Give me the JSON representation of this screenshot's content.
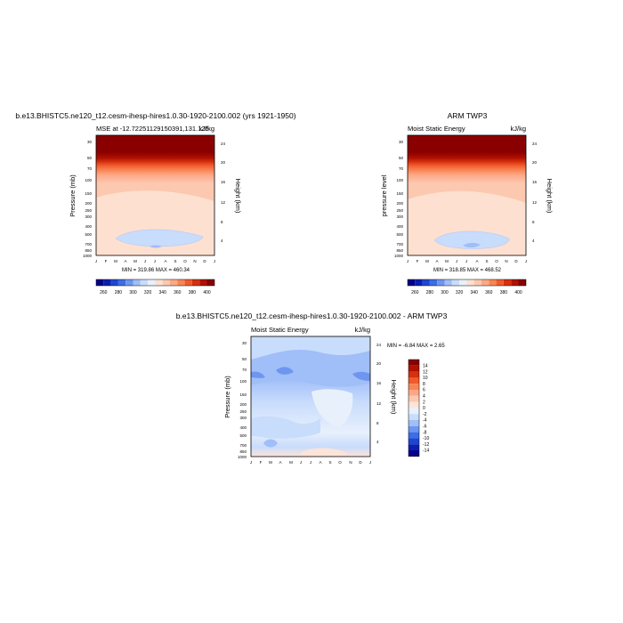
{
  "chart_data": [
    {
      "type": "heatmap",
      "title": "b.e13.BHISTC5.ne120_t12.cesm-ihesp-hires1.0.30-1920-2100.002 (yrs 1921-1950)",
      "subtitle_left": "MSE at -12.72251129150391,131.125",
      "subtitle_right": "kJ/kg",
      "xlabel": "",
      "ylabel": "Pressure (mb)",
      "ylabel_right": "Height (km)",
      "x_ticks": [
        "J",
        "F",
        "M",
        "A",
        "M",
        "J",
        "J",
        "A",
        "S",
        "O",
        "N",
        "D",
        "J"
      ],
      "y_ticks": [
        "30",
        "50",
        "70",
        "100",
        "150",
        "200",
        "250",
        "300",
        "400",
        "500",
        "700",
        "850",
        "1000"
      ],
      "y_ticks_right": [
        "24",
        "20",
        "16",
        "12",
        "8",
        "4"
      ],
      "stats": "MIN = 319.86 MAX = 460.34",
      "colorbar_labels": [
        "260",
        "280",
        "300",
        "320",
        "340",
        "360",
        "380",
        "400"
      ],
      "grid": false
    },
    {
      "type": "heatmap",
      "title": "ARM TWP3",
      "subtitle_left": "Moist Static Energy",
      "subtitle_right": "kJ/kg",
      "xlabel": "",
      "ylabel": "pressure level",
      "ylabel_right": "Height (km)",
      "x_ticks": [
        "J",
        "F",
        "M",
        "A",
        "M",
        "J",
        "J",
        "A",
        "S",
        "O",
        "N",
        "D",
        "J"
      ],
      "y_ticks": [
        "30",
        "50",
        "70",
        "100",
        "150",
        "200",
        "250",
        "300",
        "400",
        "500",
        "700",
        "850",
        "1000"
      ],
      "y_ticks_right": [
        "24",
        "20",
        "16",
        "12",
        "8",
        "4"
      ],
      "stats": "MIN = 318.85 MAX = 468.52",
      "colorbar_labels": [
        "260",
        "280",
        "300",
        "320",
        "340",
        "360",
        "380",
        "400"
      ],
      "grid": false
    },
    {
      "type": "heatmap",
      "title": "b.e13.BHISTC5.ne120_t12.cesm-ihesp-hires1.0.30-1920-2100.002 - ARM TWP3",
      "subtitle_left": "Moist Static Energy",
      "subtitle_right": "kJ/kg",
      "xlabel": "",
      "ylabel": "Pressure (mb)",
      "ylabel_right": "Height (km)",
      "x_ticks": [
        "J",
        "F",
        "M",
        "A",
        "M",
        "J",
        "J",
        "A",
        "S",
        "O",
        "N",
        "D",
        "J"
      ],
      "y_ticks": [
        "30",
        "50",
        "70",
        "100",
        "150",
        "200",
        "250",
        "300",
        "400",
        "500",
        "700",
        "850",
        "1000"
      ],
      "y_ticks_right": [
        "24",
        "20",
        "16",
        "12",
        "8",
        "4"
      ],
      "stats": "MIN =  -6.84 MAX =   2.65",
      "colorbar_labels": [
        "14",
        "12",
        "10",
        "8",
        "6",
        "4",
        "2",
        "0",
        "-2",
        "-4",
        "-6",
        "-8",
        "-10",
        "-12",
        "-14"
      ],
      "grid": false
    }
  ],
  "colors": {
    "mse_scale": [
      "#08008c",
      "#0a1fb0",
      "#1e46d2",
      "#3c6ee6",
      "#6e96f0",
      "#a0bef8",
      "#c8dcfc",
      "#e8f0fc",
      "#fde0d0",
      "#fcc8b0",
      "#fca886",
      "#fa8454",
      "#f05a2c",
      "#d6300e",
      "#b01200",
      "#8a0000"
    ],
    "diff_scale": [
      "#8a0000",
      "#b01200",
      "#d6300e",
      "#f05a2c",
      "#fa8454",
      "#fca886",
      "#fcc8b0",
      "#fde4d8",
      "#e8f0fc",
      "#c8dcfc",
      "#a0bef8",
      "#6e96f0",
      "#3c6ee6",
      "#1e46d2",
      "#0a1fb0",
      "#08008c"
    ]
  }
}
